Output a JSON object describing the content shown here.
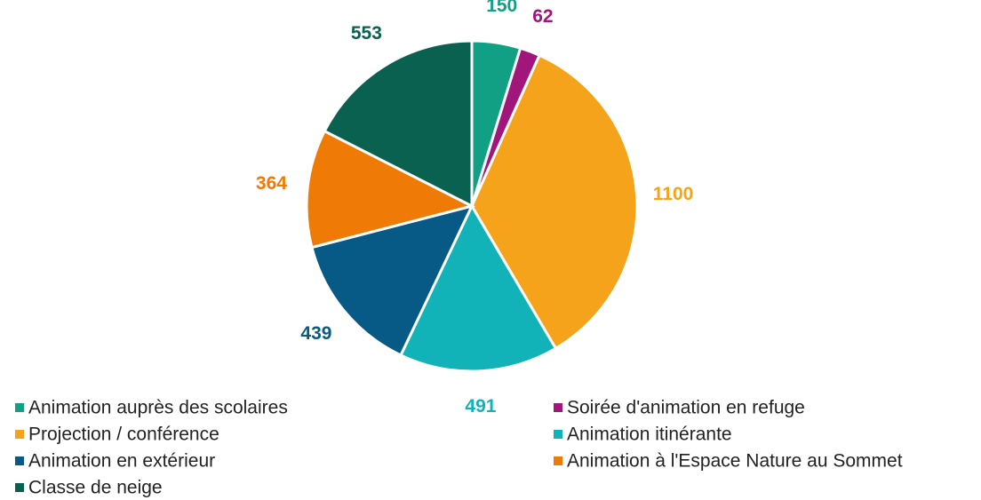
{
  "chart_data": {
    "type": "pie",
    "categories": [
      "Animation auprès des scolaires",
      "Soirée d'animation en refuge",
      "Projection / conférence",
      "Animation itinérante",
      "Animation en extérieur",
      "Animation à l'Espace Nature au Sommet",
      "Classe de neige"
    ],
    "values": [
      150,
      62,
      1100,
      491,
      439,
      364,
      553
    ],
    "colors": [
      "#12a085",
      "#a0167a",
      "#f5a31a",
      "#12b3b8",
      "#075a86",
      "#f07a06",
      "#0a614f"
    ],
    "legend": "bottom"
  }
}
